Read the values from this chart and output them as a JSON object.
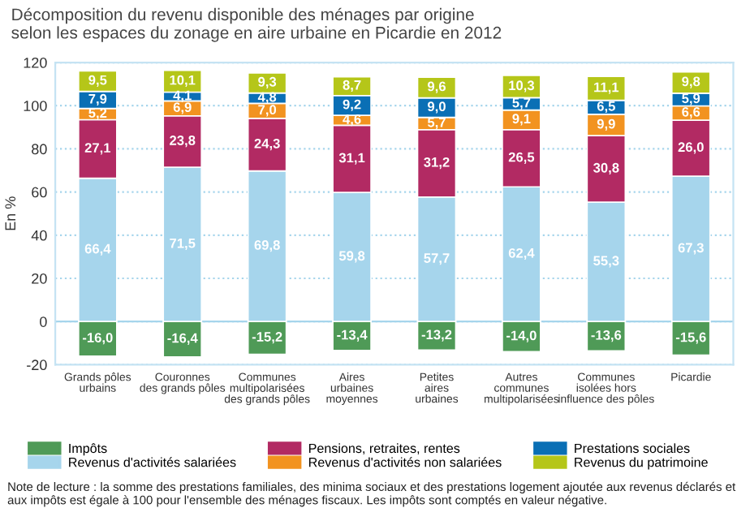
{
  "chart_data": {
    "type": "bar",
    "stacked": true,
    "title": "Décomposition du revenu disponible des ménages par origine\nselon les espaces du zonage en aire urbaine en Picardie en 2012",
    "ylabel": "En %",
    "categories": [
      "Grands pôles\nurbains",
      "Couronnes\ndes grands pôles",
      "Communes\nmultipolarisées\ndes grands pôles",
      "Aires\nurbaines\nmoyennes",
      "Petites\naires\nurbaines",
      "Autres\ncommunes\nmultipolarisées",
      "Communes\nisolées hors\ninfluence des pôles",
      "Picardie"
    ],
    "series": [
      {
        "name": "Impôts",
        "color": "#4f9a57",
        "values": [
          -16.0,
          -16.4,
          -15.2,
          -13.4,
          -13.2,
          -14.0,
          -13.6,
          -15.6
        ],
        "value_labels": [
          "-16,0",
          "-16,4",
          "-15,2",
          "-13,4",
          "-13,2",
          "-14,0",
          "-13,6",
          "-15,6"
        ]
      },
      {
        "name": "Revenus d'activités salariées",
        "color": "#a6d5ec",
        "values": [
          66.4,
          71.5,
          69.8,
          59.8,
          57.7,
          62.4,
          55.3,
          67.3
        ],
        "value_labels": [
          "66,4",
          "71,5",
          "69,8",
          "59,8",
          "57,7",
          "62,4",
          "55,3",
          "67,3"
        ]
      },
      {
        "name": "Pensions, retraites, rentes",
        "color": "#b22a63",
        "values": [
          27.1,
          23.8,
          24.3,
          31.1,
          31.2,
          26.5,
          30.8,
          26.0
        ],
        "value_labels": [
          "27,1",
          "23,8",
          "24,3",
          "31,1",
          "31,2",
          "26,5",
          "30,8",
          "26,0"
        ]
      },
      {
        "name": "Revenus d'activités non salariées",
        "color": "#f29320",
        "values": [
          5.2,
          6.9,
          7.0,
          4.6,
          5.7,
          9.1,
          9.9,
          6.6
        ],
        "value_labels": [
          "5,2",
          "6,9",
          "7,0",
          "4,6",
          "5,7",
          "9,1",
          "9,9",
          "6,6"
        ]
      },
      {
        "name": "Prestations sociales",
        "color": "#0a6fb5",
        "values": [
          7.9,
          4.1,
          4.8,
          9.2,
          9.0,
          5.7,
          6.5,
          5.9
        ],
        "value_labels": [
          "7,9",
          "4,1",
          "4,8",
          "9,2",
          "9,0",
          "5,7",
          "6,5",
          "5,9"
        ]
      },
      {
        "name": "Revenus du patrimoine",
        "color": "#b5c619",
        "values": [
          9.5,
          10.1,
          9.3,
          8.7,
          9.6,
          10.3,
          11.1,
          9.8
        ],
        "value_labels": [
          "9,5",
          "10,1",
          "9,3",
          "8,7",
          "9,6",
          "10,3",
          "11,1",
          "9,8"
        ]
      }
    ],
    "ylim": [
      -20,
      120
    ],
    "yticks": [
      -20,
      0,
      20,
      40,
      60,
      80,
      100,
      120
    ],
    "grid": "y",
    "legend": "bottom",
    "ref_lines": [
      {
        "axis": "y",
        "value": 0,
        "color": "#a6d5ec"
      }
    ],
    "annotations": [
      "Note de lecture : la somme des prestations familiales, des minima sociaux et des prestations logement ajoutée aux revenus déclarés et aux impôts est égale à 100 pour l'ensemble des ménages fiscaux. Les impôts sont comptés en valeur négative."
    ]
  }
}
